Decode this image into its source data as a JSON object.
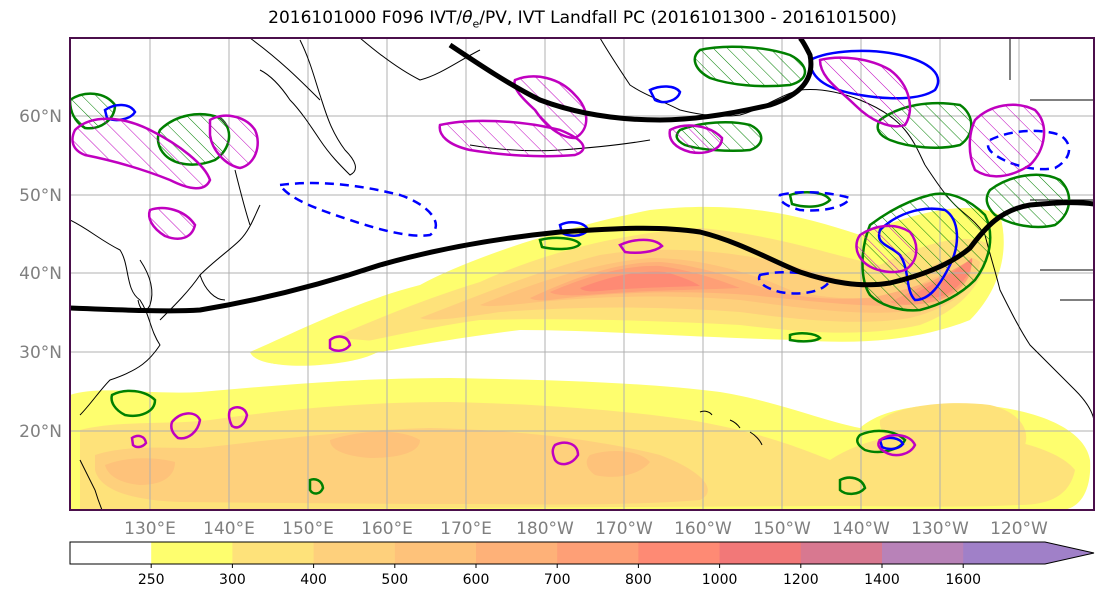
{
  "figure": {
    "title_prefix": "2016101000 F096 IVT/",
    "title_theta": "θ",
    "title_sub": "e",
    "title_suffix": "/PV, IVT Landfall PC (2016101300 - 2016101500)"
  },
  "map": {
    "lat_labels": [
      "60°N",
      "50°N",
      "40°N",
      "30°N",
      "20°N"
    ],
    "lon_labels": [
      "130°E",
      "140°E",
      "150°E",
      "160°E",
      "170°E",
      "180°W",
      "170°W",
      "160°W",
      "150°W",
      "140°W",
      "130°W",
      "120°W"
    ],
    "colors": {
      "ivt_contour": "#000000",
      "pv_positive": "#0000ff",
      "pv_negative": "#0000ff",
      "theta_e": "#008000",
      "landfall_pc": "#c000c0",
      "coastline": "#000000",
      "grid": "#b0b0b0"
    }
  },
  "colorbar": {
    "tick_labels": [
      "250",
      "300",
      "400",
      "500",
      "600",
      "700",
      "800",
      "1000",
      "1200",
      "1400",
      "1600"
    ],
    "colors": [
      "#ffffff",
      "#fefe6e",
      "#fee27a",
      "#fed07c",
      "#fec27a",
      "#feb178",
      "#fe9f76",
      "#fe8a74",
      "#f27878",
      "#d87890",
      "#b882b8",
      "#a080c8"
    ]
  }
}
